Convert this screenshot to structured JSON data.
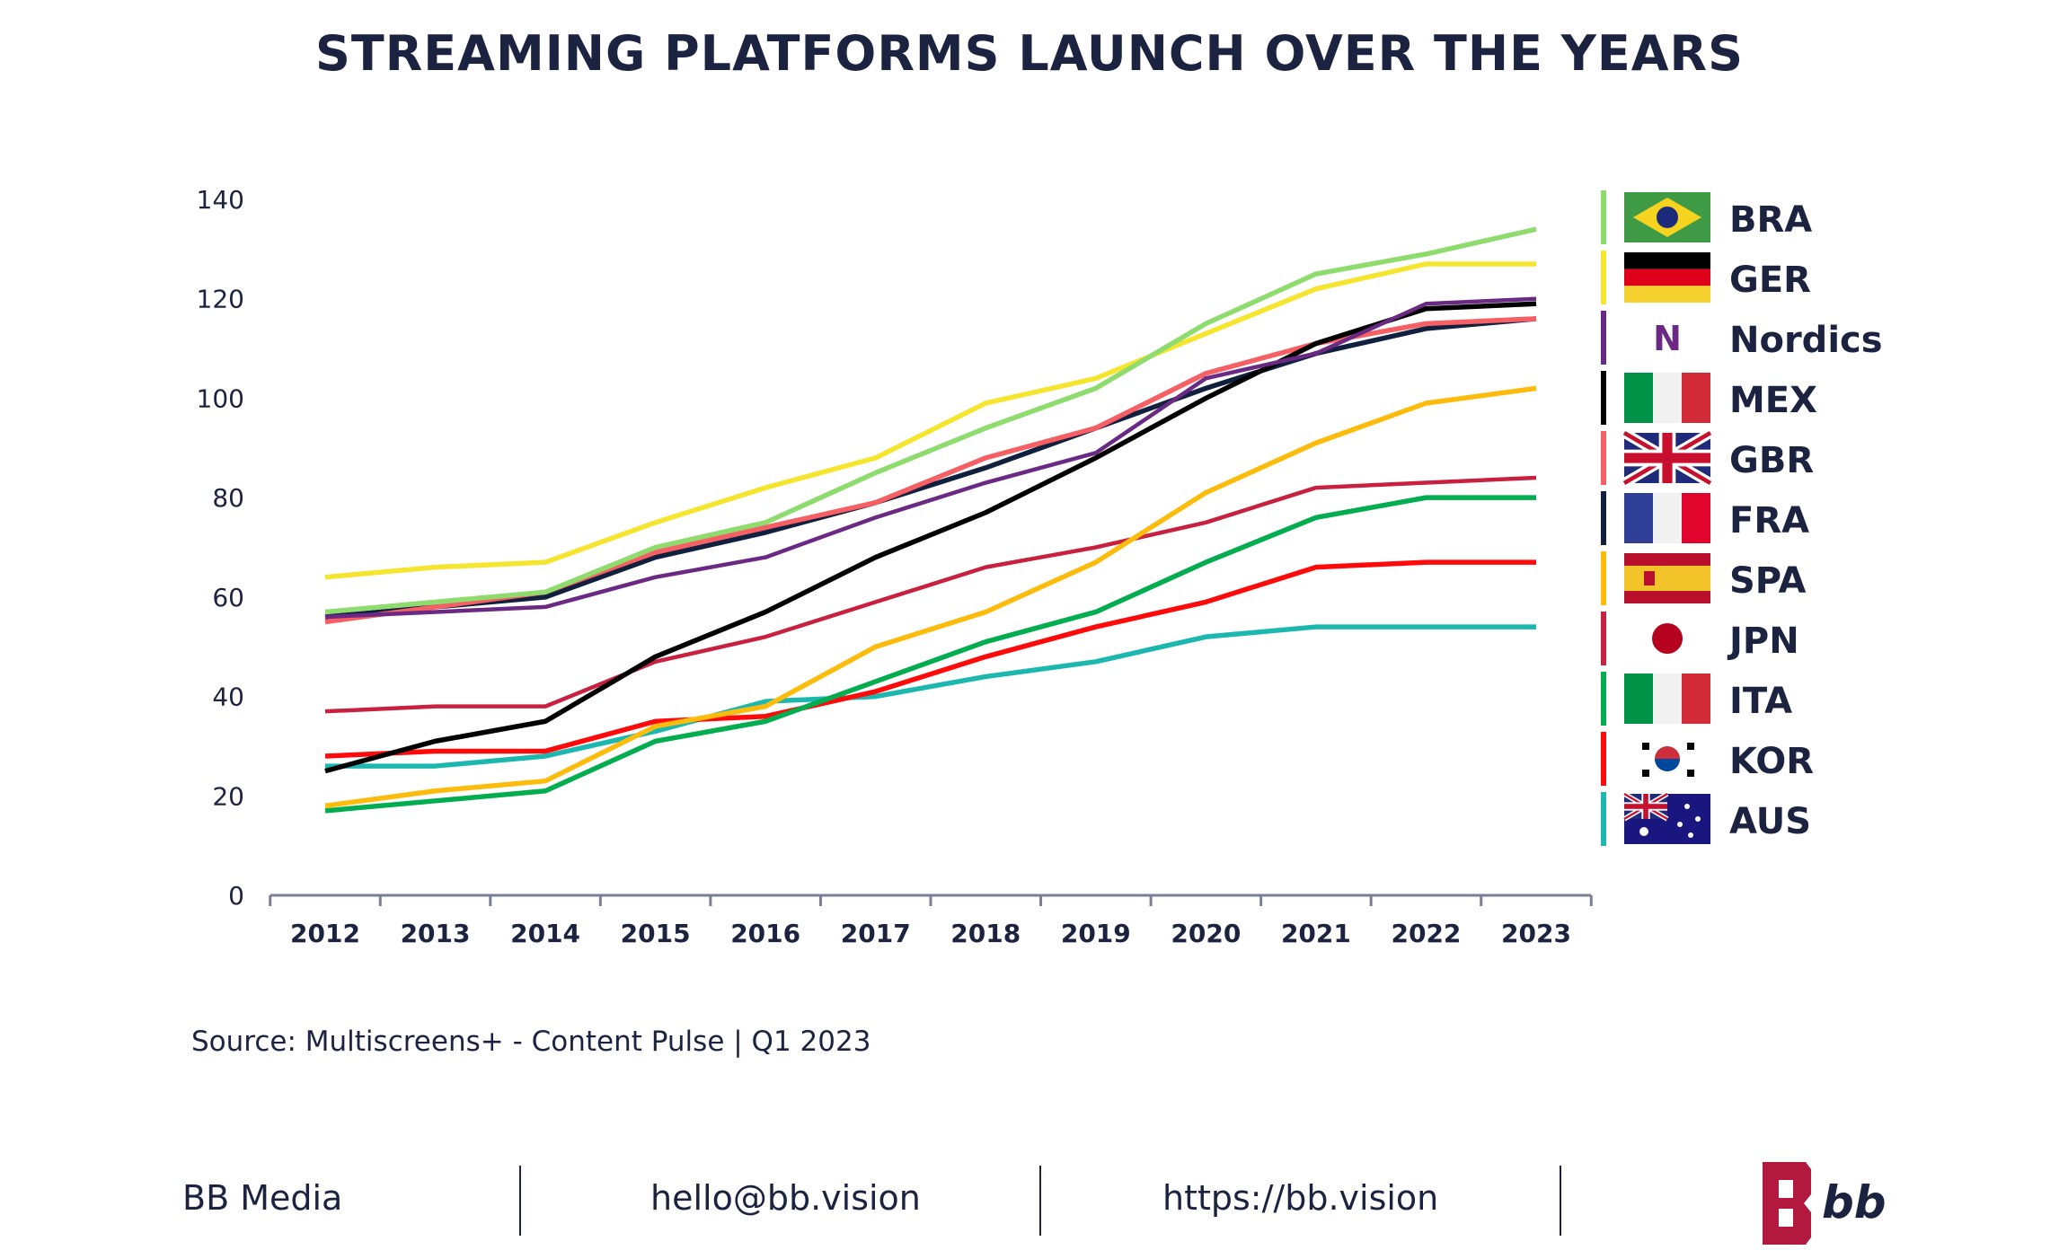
{
  "title": "STREAMING PLATFORMS LAUNCH OVER THE YEARS",
  "source": "Source: Multiscreens+ - Content Pulse | Q1 2023",
  "footer": {
    "company": "BB Media",
    "email": "hello@bb.vision",
    "url": "https://bb.vision",
    "logo_text": "bb"
  },
  "chart_data": {
    "type": "line",
    "title": "STREAMING PLATFORMS LAUNCH OVER THE YEARS",
    "xlabel": "",
    "ylabel": "",
    "ylim": [
      0,
      140
    ],
    "yticks": [
      0,
      20,
      40,
      60,
      80,
      100,
      120,
      140
    ],
    "grid": false,
    "legend_position": "right",
    "categories": [
      "2012",
      "2013",
      "2014",
      "2015",
      "2016",
      "2017",
      "2018",
      "2019",
      "2020",
      "2021",
      "2022",
      "2023"
    ],
    "series": [
      {
        "name": "BRA",
        "color": "#8fdc6e",
        "flag": "brazil",
        "values": [
          57,
          59,
          61,
          70,
          75,
          85,
          94,
          102,
          115,
          125,
          129,
          134
        ]
      },
      {
        "name": "GER",
        "color": "#f6e52e",
        "flag": "germany",
        "values": [
          64,
          66,
          67,
          75,
          82,
          88,
          99,
          104,
          113,
          122,
          127,
          127
        ]
      },
      {
        "name": "Nordics",
        "color": "#6a2a84",
        "flag": "nordics-n",
        "values": [
          56,
          57,
          58,
          64,
          68,
          76,
          83,
          89,
          104,
          109,
          119,
          120
        ]
      },
      {
        "name": "MEX",
        "color": "#000000",
        "flag": "mexico",
        "values": [
          25,
          31,
          35,
          48,
          57,
          68,
          77,
          88,
          100,
          111,
          118,
          119
        ]
      },
      {
        "name": "GBR",
        "color": "#f65f63",
        "flag": "uk",
        "values": [
          55,
          58,
          61,
          69,
          74,
          79,
          88,
          94,
          105,
          111,
          115,
          116
        ]
      },
      {
        "name": "FRA",
        "color": "#12203f",
        "flag": "france",
        "values": [
          56,
          58,
          60,
          68,
          73,
          79,
          86,
          94,
          102,
          109,
          114,
          116
        ]
      },
      {
        "name": "SPA",
        "color": "#fdbb0c",
        "flag": "spain",
        "values": [
          18,
          21,
          23,
          34,
          38,
          50,
          57,
          67,
          81,
          91,
          99,
          102
        ]
      },
      {
        "name": "JPN",
        "color": "#c8203f",
        "flag": "japan",
        "values": [
          37,
          38,
          38,
          47,
          52,
          59,
          66,
          70,
          75,
          82,
          83,
          84
        ]
      },
      {
        "name": "ITA",
        "color": "#02ad4f",
        "flag": "italy",
        "values": [
          17,
          19,
          21,
          31,
          35,
          43,
          51,
          57,
          67,
          76,
          80,
          80
        ]
      },
      {
        "name": "KOR",
        "color": "#ff0a0a",
        "flag": "korea",
        "values": [
          28,
          29,
          29,
          35,
          36,
          41,
          48,
          54,
          59,
          66,
          67,
          67
        ]
      },
      {
        "name": "AUS",
        "color": "#1cb8b0",
        "flag": "australia",
        "values": [
          26,
          26,
          28,
          33,
          39,
          40,
          44,
          47,
          52,
          54,
          54,
          54
        ]
      }
    ]
  }
}
